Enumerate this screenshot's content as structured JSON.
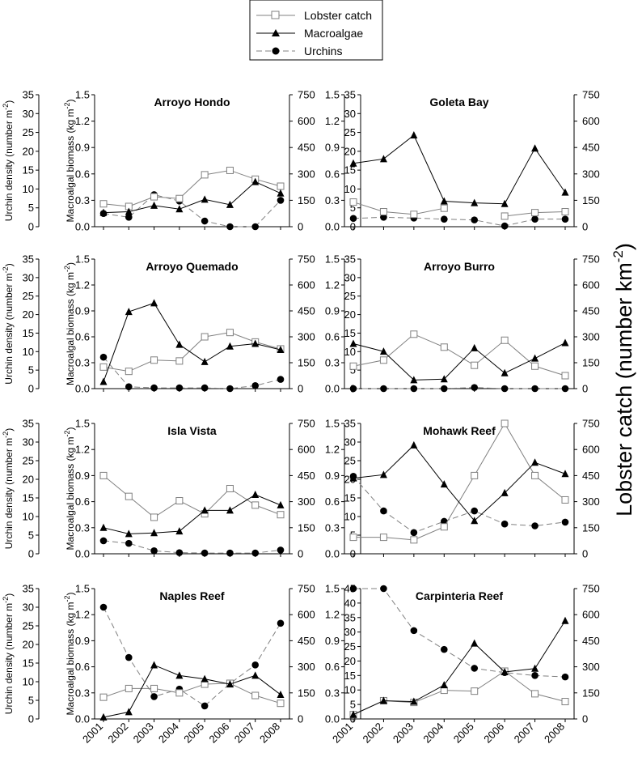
{
  "legend": {
    "lobster": "Lobster catch",
    "macro": "Macroalgae",
    "urchin": "Urchins"
  },
  "axis_titles": {
    "urchin": "Urchin density (number m",
    "macro": "Macroalgal biomass (kg m",
    "lobster": "Lobster catch (number km",
    "sup_neg2": "-2",
    "close_paren": ")"
  },
  "chart_data": [
    {
      "type": "line",
      "title": "Arroyo Hondo",
      "x": [
        2001,
        2002,
        2003,
        2004,
        2005,
        2006,
        2007,
        2008
      ],
      "urchin_ylim": [
        0,
        35
      ],
      "macro_ylim": [
        0,
        1.5
      ],
      "lobster_ylim": [
        0,
        750
      ],
      "series": [
        {
          "name": "Lobster catch",
          "axis": "right",
          "values": [
            130,
            115,
            170,
            160,
            295,
            320,
            270,
            230
          ]
        },
        {
          "name": "Macroalgae",
          "axis": "left",
          "values": [
            0.16,
            0.17,
            0.24,
            0.2,
            0.31,
            0.25,
            0.51,
            0.38
          ]
        },
        {
          "name": "Urchins",
          "axis": "far-left",
          "values": [
            3.5,
            2.5,
            8.5,
            6.8,
            1.5,
            0,
            0,
            7
          ]
        }
      ]
    },
    {
      "type": "line",
      "title": "Goleta Bay",
      "x": [
        2001,
        2002,
        2003,
        2004,
        2005,
        2006,
        2007,
        2008
      ],
      "urchin_ylim": [
        0,
        35
      ],
      "macro_ylim": [
        0,
        1.5
      ],
      "lobster_ylim": [
        0,
        750
      ],
      "series": [
        {
          "name": "Lobster catch",
          "axis": "right",
          "values": [
            140,
            85,
            70,
            105,
            null,
            60,
            80,
            85
          ]
        },
        {
          "name": "Macroalgae",
          "axis": "left",
          "values": [
            0.72,
            0.77,
            1.04,
            0.29,
            0.27,
            0.26,
            0.89,
            0.39
          ]
        },
        {
          "name": "Urchins",
          "axis": "far-left",
          "values": [
            2.2,
            2.5,
            2.3,
            2,
            1.8,
            0.2,
            2,
            2
          ]
        }
      ]
    },
    {
      "type": "line",
      "title": "Arroyo Quemado",
      "x": [
        2001,
        2002,
        2003,
        2004,
        2005,
        2006,
        2007,
        2008
      ],
      "urchin_ylim": [
        0,
        35
      ],
      "macro_ylim": [
        0,
        1.5
      ],
      "lobster_ylim": [
        0,
        750
      ],
      "series": [
        {
          "name": "Lobster catch",
          "axis": "right",
          "values": [
            125,
            100,
            165,
            160,
            300,
            325,
            270,
            230
          ]
        },
        {
          "name": "Macroalgae",
          "axis": "left",
          "values": [
            0.08,
            0.89,
            0.99,
            0.51,
            0.31,
            0.49,
            0.52,
            0.45
          ]
        },
        {
          "name": "Urchins",
          "axis": "far-left",
          "values": [
            8.5,
            0.5,
            0.2,
            0.2,
            0.2,
            0,
            0.8,
            2.5
          ]
        }
      ]
    },
    {
      "type": "line",
      "title": "Arroyo Burro",
      "x": [
        2001,
        2002,
        2003,
        2004,
        2005,
        2006,
        2007,
        2008
      ],
      "urchin_ylim": [
        0,
        35
      ],
      "macro_ylim": [
        0,
        1.5
      ],
      "lobster_ylim": [
        0,
        750
      ],
      "series": [
        {
          "name": "Lobster catch",
          "axis": "right",
          "values": [
            130,
            165,
            315,
            240,
            135,
            280,
            130,
            75
          ]
        },
        {
          "name": "Macroalgae",
          "axis": "left",
          "values": [
            0.52,
            0.43,
            0.1,
            0.11,
            0.47,
            0.18,
            0.35,
            0.53
          ]
        },
        {
          "name": "Urchins",
          "axis": "far-left",
          "values": [
            0,
            0,
            0,
            0,
            0.3,
            0,
            0,
            0
          ]
        }
      ]
    },
    {
      "type": "line",
      "title": "Isla Vista",
      "x": [
        2001,
        2002,
        2003,
        2004,
        2005,
        2006,
        2007,
        2008
      ],
      "urchin_ylim": [
        0,
        35
      ],
      "macro_ylim": [
        0,
        1.5
      ],
      "lobster_ylim": [
        0,
        750
      ],
      "series": [
        {
          "name": "Lobster catch",
          "axis": "right",
          "values": [
            450,
            330,
            210,
            305,
            230,
            375,
            280,
            225
          ]
        },
        {
          "name": "Macroalgae",
          "axis": "left",
          "values": [
            0.3,
            0.23,
            0.24,
            0.26,
            0.5,
            0.5,
            0.68,
            0.56
          ]
        },
        {
          "name": "Urchins",
          "axis": "far-left",
          "values": [
            3.5,
            2.8,
            0.8,
            0.3,
            0.2,
            0.2,
            0.2,
            1
          ]
        }
      ]
    },
    {
      "type": "line",
      "title": "Mohawk Reef",
      "x": [
        2001,
        2002,
        2003,
        2004,
        2005,
        2006,
        2007,
        2008
      ],
      "urchin_ylim": [
        0,
        35
      ],
      "macro_ylim": [
        0,
        1.5
      ],
      "lobster_ylim": [
        0,
        750
      ],
      "series": [
        {
          "name": "Lobster catch",
          "axis": "right",
          "values": [
            95,
            95,
            80,
            155,
            450,
            750,
            450,
            310
          ]
        },
        {
          "name": "Macroalgae",
          "axis": "left",
          "values": [
            0.87,
            0.91,
            1.25,
            0.8,
            0.38,
            0.7,
            1.05,
            0.92
          ]
        },
        {
          "name": "Urchins",
          "axis": "far-left",
          "values": [
            20.8,
            11.5,
            5.7,
            8.7,
            11.5,
            8,
            7.5,
            8.5
          ]
        }
      ]
    },
    {
      "type": "line",
      "title": "Naples Reef",
      "x": [
        2001,
        2002,
        2003,
        2004,
        2005,
        2006,
        2007,
        2008
      ],
      "urchin_ylim": [
        0,
        35
      ],
      "macro_ylim": [
        0,
        1.5
      ],
      "lobster_ylim": [
        0,
        750
      ],
      "series": [
        {
          "name": "Lobster catch",
          "axis": "right",
          "values": [
            125,
            175,
            175,
            150,
            200,
            205,
            135,
            90
          ]
        },
        {
          "name": "Macroalgae",
          "axis": "left",
          "values": [
            0.02,
            0.08,
            0.62,
            0.5,
            0.46,
            0.4,
            0.5,
            0.28
          ]
        },
        {
          "name": "Urchins",
          "axis": "far-left",
          "values": [
            30,
            16.5,
            6,
            8,
            3.5,
            9.5,
            14.5,
            25.7
          ]
        }
      ]
    },
    {
      "type": "line",
      "title": "Carpinteria Reef",
      "x": [
        2001,
        2002,
        2003,
        2004,
        2005,
        2006,
        2007,
        2008
      ],
      "urchin_ylim": [
        0,
        45
      ],
      "macro_ylim": [
        0,
        1.5
      ],
      "lobster_ylim": [
        0,
        750
      ],
      "series": [
        {
          "name": "Lobster catch",
          "axis": "right",
          "values": [
            25,
            105,
            95,
            165,
            160,
            275,
            145,
            100
          ]
        },
        {
          "name": "Macroalgae",
          "axis": "left",
          "values": [
            0.05,
            0.21,
            0.2,
            0.39,
            0.87,
            0.54,
            0.58,
            1.13
          ]
        },
        {
          "name": "Urchins",
          "axis": "far-left",
          "values": [
            45,
            45,
            30.5,
            24,
            17.5,
            16,
            15,
            14.5
          ]
        }
      ]
    }
  ]
}
